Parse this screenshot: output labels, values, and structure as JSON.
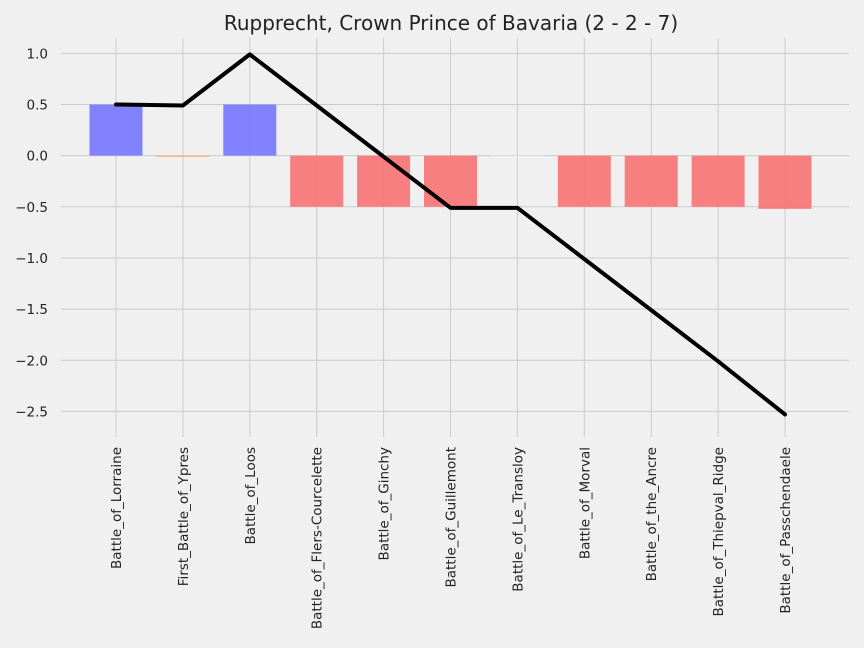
{
  "chart_data": {
    "type": "bar",
    "title": "Rupprecht, Crown Prince of Bavaria (2 - 2 - 7)",
    "xlabel": "",
    "ylabel": "",
    "ylim": [
      -2.75,
      1.15
    ],
    "yticks": [
      1.0,
      0.5,
      0.0,
      -0.5,
      -1.0,
      -1.5,
      -2.0,
      -2.5
    ],
    "ytick_labels": [
      "1.0",
      "0.5",
      "0.0",
      "−0.5",
      "−1.0",
      "−1.5",
      "−2.0",
      "−2.5"
    ],
    "categories": [
      "Battle_of_Lorraine",
      "First_Battle_of_Ypres",
      "Battle_of_Loos",
      "Battle_of_Flers-Courcelette",
      "Battle_of_Ginchy",
      "Battle_of_Guillemont",
      "Battle_of_Le_Transloy",
      "Battle_of_Morval",
      "Battle_of_the_Ancre",
      "Battle_of_Thiepval_Ridge",
      "Battle_of_Passchendaele"
    ],
    "series": [
      {
        "type": "bar",
        "values": [
          0.5,
          0.0,
          0.5,
          -0.5,
          -0.5,
          -0.5,
          0.0,
          -0.5,
          -0.5,
          -0.5,
          -0.52
        ],
        "colors": [
          "#7b7bff",
          "#f5b25a",
          "#7b7bff",
          "#f87878",
          "#f87878",
          "#f87878",
          "#f0f0f0",
          "#f87878",
          "#f87878",
          "#f87878",
          "#f87878"
        ]
      },
      {
        "type": "line",
        "values": [
          0.5,
          0.49,
          0.99,
          0.49,
          -0.01,
          -0.51,
          -0.51,
          -1.01,
          -1.51,
          -2.01,
          -2.53
        ],
        "color": "#000000"
      }
    ],
    "grid": true
  }
}
